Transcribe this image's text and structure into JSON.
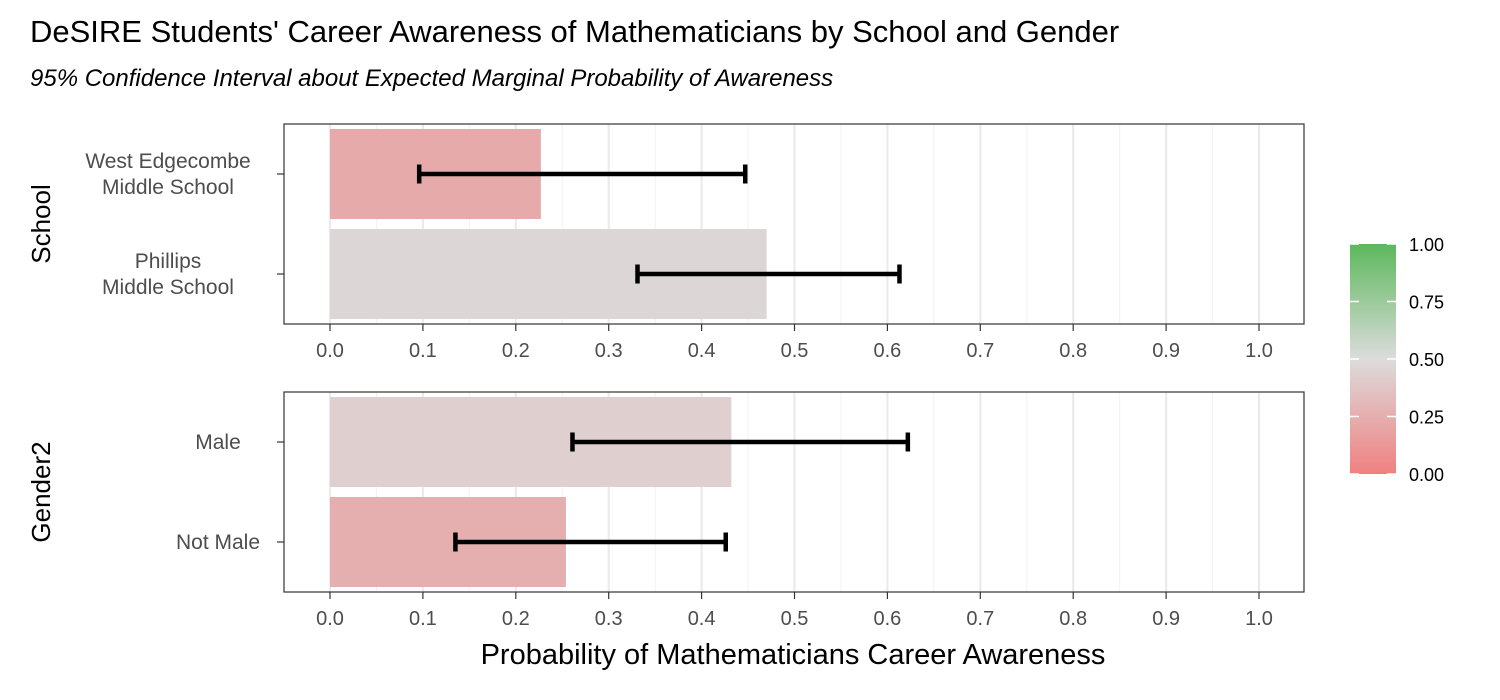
{
  "chart_data": {
    "type": "bar",
    "orientation": "horizontal",
    "title": "DeSIRE Students' Career Awareness of Mathematicians by School and Gender",
    "subtitle": "95% Confidence Interval about Expected Marginal Probability of Awareness",
    "xlabel": "Probability of Mathematicians Career Awareness",
    "xlim": [
      0,
      1
    ],
    "x_ticks": [
      "0.0",
      "0.1",
      "0.2",
      "0.3",
      "0.4",
      "0.5",
      "0.6",
      "0.7",
      "0.8",
      "0.9",
      "1.0"
    ],
    "grid": true,
    "legend_position": "right",
    "color_scale": {
      "low": "#F08080",
      "mid": "#DCDCDC",
      "high": "#5CB85C",
      "ticks": [
        "0.00",
        "0.25",
        "0.50",
        "0.75",
        "1.00"
      ]
    },
    "facets": [
      {
        "name": "School",
        "categories": [
          {
            "label": [
              "West Edgecombe",
              "Middle School"
            ],
            "value": 0.227,
            "ci_low": 0.096,
            "ci_high": 0.447
          },
          {
            "label": [
              "Phillips",
              "Middle School"
            ],
            "value": 0.47,
            "ci_low": 0.331,
            "ci_high": 0.613
          }
        ]
      },
      {
        "name": "Gender2",
        "categories": [
          {
            "label": [
              "Male"
            ],
            "value": 0.432,
            "ci_low": 0.261,
            "ci_high": 0.622
          },
          {
            "label": [
              "Not Male"
            ],
            "value": 0.254,
            "ci_low": 0.135,
            "ci_high": 0.426
          }
        ]
      }
    ]
  }
}
